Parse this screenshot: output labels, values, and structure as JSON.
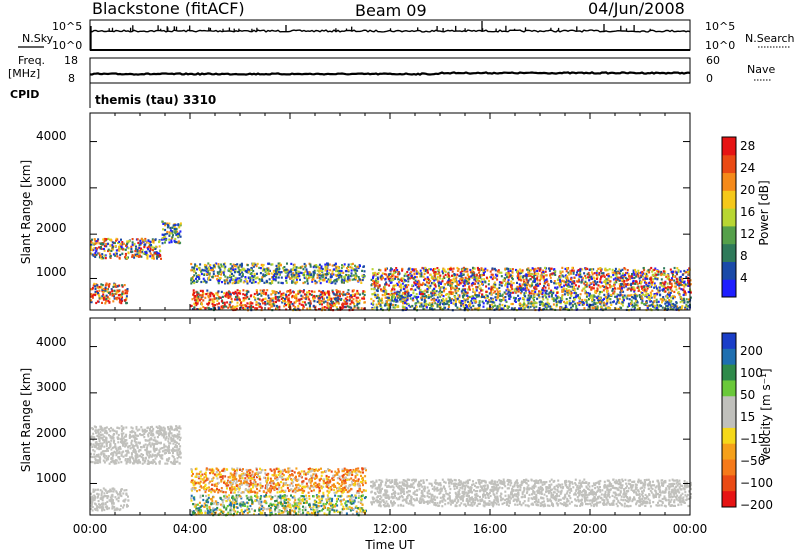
{
  "header": {
    "title": "Blackstone (fitACF)",
    "beam": "Beam 09",
    "date": "04/Jun/2008"
  },
  "top_panels": {
    "nsky_label": "N.Sky",
    "nsearch_label": "N.Search",
    "nsky_ticks": [
      "10^5",
      "10^0"
    ],
    "nsearch_ticks": [
      "10^5",
      "10^0"
    ],
    "freq_label": "Freq.",
    "freq_unit": "[MHz]",
    "freq_ticks": [
      "18",
      "8"
    ],
    "nave_label": "Nave",
    "nave_ticks": [
      "60",
      "0"
    ],
    "cpid_label": "CPID",
    "program": "themis (tau) 3310"
  },
  "colors": {
    "power": [
      "#1f1fff",
      "#1a4aa8",
      "#2f7a5a",
      "#55a04a",
      "#b8d632",
      "#f5c81a",
      "#f58a1a",
      "#ea4a14",
      "#e61414"
    ],
    "velocity_pos": [
      "#1a3ec8",
      "#1f6fb0",
      "#2f8a4a",
      "#6ac83a"
    ],
    "velocity_ground": "#c0c0bc",
    "velocity_neg": [
      "#f5d81a",
      "#f5a01a",
      "#f57a1a",
      "#ea4a14",
      "#e61414"
    ]
  },
  "chart_data": [
    {
      "type": "heatmap",
      "name": "power",
      "ylabel": "Slant Range [km]",
      "ylim": [
        180,
        4600
      ],
      "yticks": [
        "4000",
        "3000",
        "2000",
        "1000"
      ],
      "xticks": [
        "00:00",
        "04:00",
        "08:00",
        "12:00",
        "16:00",
        "20:00",
        "00:00"
      ],
      "colorbar": {
        "label": "Power [dB]",
        "ticks": [
          "28",
          "24",
          "20",
          "16",
          "12",
          "8",
          "4"
        ],
        "range": [
          0,
          32
        ]
      },
      "regions": [
        {
          "t": [
            0.0,
            2.8
          ],
          "r": [
            1350,
            1800
          ],
          "level": "mid-high"
        },
        {
          "t": [
            2.8,
            3.6
          ],
          "r": [
            1700,
            2200
          ],
          "level": "mid"
        },
        {
          "t": [
            0.0,
            1.5
          ],
          "r": [
            350,
            800
          ],
          "level": "high"
        },
        {
          "t": [
            4.0,
            11.0
          ],
          "r": [
            800,
            1250
          ],
          "level": "mid"
        },
        {
          "t": [
            4.0,
            11.0
          ],
          "r": [
            200,
            650
          ],
          "level": "high"
        },
        {
          "t": [
            11.2,
            24.0
          ],
          "r": [
            550,
            1150
          ],
          "level": "mid-high"
        },
        {
          "t": [
            11.2,
            24.0
          ],
          "r": [
            200,
            550
          ],
          "level": "mid"
        }
      ]
    },
    {
      "type": "heatmap",
      "name": "velocity",
      "ylabel": "Slant Range [km]",
      "ylim": [
        180,
        4600
      ],
      "yticks": [
        "4000",
        "3000",
        "2000",
        "1000"
      ],
      "xticks": [
        "00:00",
        "04:00",
        "08:00",
        "12:00",
        "16:00",
        "20:00",
        "00:00"
      ],
      "xlabel": "Time UT",
      "colorbar": {
        "label": "Velocity [m s⁻¹]",
        "ticks": [
          "200",
          "100",
          "50",
          "15",
          "−15",
          "−50",
          "−100",
          "−200"
        ],
        "range": [
          -250,
          250
        ]
      },
      "regions": [
        {
          "t": [
            0.0,
            3.6
          ],
          "r": [
            1350,
            2200
          ],
          "level": "ground"
        },
        {
          "t": [
            0.0,
            1.5
          ],
          "r": [
            300,
            800
          ],
          "level": "ground"
        },
        {
          "t": [
            4.0,
            11.0
          ],
          "r": [
            700,
            1250
          ],
          "level": "negative"
        },
        {
          "t": [
            4.0,
            11.0
          ],
          "r": [
            200,
            650
          ],
          "level": "mixed"
        },
        {
          "t": [
            11.2,
            24.0
          ],
          "r": [
            400,
            1000
          ],
          "level": "ground"
        }
      ]
    }
  ]
}
